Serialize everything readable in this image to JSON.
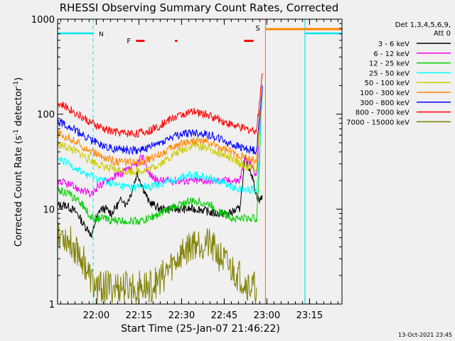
{
  "chart_data": {
    "type": "line",
    "title": "RHESSI Observing Summary Count Rates, Corrected",
    "xlabel": "Start Time (25-Jan-07 21:46:22)",
    "ylabel_main": "Corrected Count Rate (s",
    "ylabel_sup1": "-1",
    "ylabel_mid": " detector",
    "ylabel_sup2": "-1",
    "ylabel_end": ")",
    "y_scale": "log",
    "ylim": [
      1,
      1000
    ],
    "x_range_minutes": [
      0,
      100
    ],
    "x_ticks": [
      {
        "t": 13.6,
        "label": "22:00"
      },
      {
        "t": 28.6,
        "label": "22:15"
      },
      {
        "t": 43.6,
        "label": "22:30"
      },
      {
        "t": 58.6,
        "label": "22:45"
      },
      {
        "t": 73.6,
        "label": "23:00"
      },
      {
        "t": 88.6,
        "label": "23:15"
      }
    ],
    "y_ticks": [
      {
        "v": 1,
        "label": "1"
      },
      {
        "v": 10,
        "label": "10"
      },
      {
        "v": 100,
        "label": "100"
      },
      {
        "v": 1000,
        "label": "1000"
      }
    ],
    "legend_header": [
      "Det 1,3,4,5,6,9,",
      "Att 0"
    ],
    "legend_placement": "right",
    "series": [
      {
        "name": "3 - 6 keV",
        "color": "#000000",
        "values": [
          [
            0,
            11
          ],
          [
            3,
            11
          ],
          [
            5,
            10
          ],
          [
            7,
            9
          ],
          [
            9,
            7
          ],
          [
            11,
            6
          ],
          [
            12,
            5
          ],
          [
            13,
            7
          ],
          [
            15,
            10
          ],
          [
            17,
            10
          ],
          [
            19,
            9
          ],
          [
            21,
            11
          ],
          [
            23,
            13
          ],
          [
            24,
            11
          ],
          [
            26,
            15
          ],
          [
            28,
            24
          ],
          [
            30,
            17
          ],
          [
            32,
            12
          ],
          [
            34,
            11
          ],
          [
            36,
            10
          ],
          [
            40,
            10
          ],
          [
            45,
            10
          ],
          [
            50,
            10
          ],
          [
            55,
            9
          ],
          [
            60,
            9
          ],
          [
            64,
            10
          ],
          [
            66,
            33
          ],
          [
            68,
            25
          ],
          [
            70,
            14
          ],
          [
            71,
            12
          ],
          [
            72,
            14
          ]
        ]
      },
      {
        "name": "6 - 12 keV",
        "color": "#ee00ee",
        "values": [
          [
            0,
            20
          ],
          [
            4,
            18
          ],
          [
            8,
            16
          ],
          [
            12,
            14
          ],
          [
            14,
            17
          ],
          [
            17,
            20
          ],
          [
            20,
            22
          ],
          [
            24,
            25
          ],
          [
            27,
            28
          ],
          [
            30,
            36
          ],
          [
            32,
            24
          ],
          [
            35,
            20
          ],
          [
            40,
            20
          ],
          [
            45,
            20
          ],
          [
            50,
            20
          ],
          [
            55,
            20
          ],
          [
            60,
            20
          ],
          [
            64,
            20
          ],
          [
            66,
            35
          ],
          [
            68,
            30
          ],
          [
            70,
            22
          ],
          [
            72,
            200
          ]
        ]
      },
      {
        "name": "12 - 25 keV",
        "color": "#00cc00",
        "values": [
          [
            0,
            16
          ],
          [
            3,
            15
          ],
          [
            6,
            13
          ],
          [
            9,
            11
          ],
          [
            12,
            8
          ],
          [
            16,
            8
          ],
          [
            20,
            7.5
          ],
          [
            25,
            7.5
          ],
          [
            30,
            7.5
          ],
          [
            34,
            8.5
          ],
          [
            38,
            9.5
          ],
          [
            42,
            11
          ],
          [
            46,
            12
          ],
          [
            50,
            12
          ],
          [
            54,
            11
          ],
          [
            58,
            9
          ],
          [
            62,
            8
          ],
          [
            66,
            8
          ],
          [
            70,
            8
          ],
          [
            71,
            30
          ],
          [
            72,
            200
          ]
        ]
      },
      {
        "name": "25 - 50 keV",
        "color": "#00ffff",
        "values": [
          [
            0,
            33
          ],
          [
            4,
            30
          ],
          [
            8,
            25
          ],
          [
            12,
            22
          ],
          [
            16,
            20
          ],
          [
            20,
            18
          ],
          [
            24,
            17
          ],
          [
            28,
            17
          ],
          [
            32,
            17
          ],
          [
            36,
            18
          ],
          [
            40,
            20
          ],
          [
            44,
            22
          ],
          [
            48,
            23
          ],
          [
            52,
            22
          ],
          [
            56,
            20
          ],
          [
            60,
            18
          ],
          [
            64,
            16
          ],
          [
            68,
            16
          ],
          [
            70,
            16
          ],
          [
            71,
            40
          ],
          [
            72,
            200
          ]
        ]
      },
      {
        "name": "50 - 100 keV",
        "color": "#cccc00",
        "values": [
          [
            0,
            48
          ],
          [
            4,
            44
          ],
          [
            8,
            38
          ],
          [
            12,
            32
          ],
          [
            16,
            28
          ],
          [
            20,
            26
          ],
          [
            24,
            25
          ],
          [
            28,
            25
          ],
          [
            32,
            26
          ],
          [
            36,
            30
          ],
          [
            40,
            36
          ],
          [
            44,
            42
          ],
          [
            48,
            47
          ],
          [
            52,
            45
          ],
          [
            56,
            40
          ],
          [
            60,
            35
          ],
          [
            64,
            30
          ],
          [
            68,
            27
          ],
          [
            70,
            27
          ],
          [
            72,
            200
          ]
        ]
      },
      {
        "name": "100 - 300 keV",
        "color": "#ff8800",
        "values": [
          [
            0,
            62
          ],
          [
            4,
            56
          ],
          [
            8,
            48
          ],
          [
            12,
            40
          ],
          [
            16,
            35
          ],
          [
            20,
            32
          ],
          [
            24,
            31
          ],
          [
            28,
            31
          ],
          [
            32,
            33
          ],
          [
            36,
            38
          ],
          [
            40,
            44
          ],
          [
            44,
            50
          ],
          [
            48,
            53
          ],
          [
            52,
            51
          ],
          [
            56,
            46
          ],
          [
            60,
            41
          ],
          [
            64,
            37
          ],
          [
            68,
            33
          ],
          [
            70,
            33
          ],
          [
            72,
            200
          ]
        ]
      },
      {
        "name": "300 - 800 keV",
        "color": "#0000ff",
        "values": [
          [
            0,
            85
          ],
          [
            4,
            75
          ],
          [
            8,
            62
          ],
          [
            12,
            53
          ],
          [
            16,
            47
          ],
          [
            20,
            43
          ],
          [
            24,
            42
          ],
          [
            28,
            42
          ],
          [
            32,
            44
          ],
          [
            36,
            50
          ],
          [
            40,
            57
          ],
          [
            44,
            62
          ],
          [
            48,
            64
          ],
          [
            52,
            62
          ],
          [
            56,
            57
          ],
          [
            60,
            50
          ],
          [
            64,
            45
          ],
          [
            68,
            42
          ],
          [
            70,
            42
          ],
          [
            72,
            200
          ]
        ]
      },
      {
        "name": "800 - 7000 keV",
        "color": "#ff0000",
        "values": [
          [
            0,
            130
          ],
          [
            4,
            115
          ],
          [
            8,
            95
          ],
          [
            12,
            80
          ],
          [
            16,
            70
          ],
          [
            20,
            65
          ],
          [
            24,
            63
          ],
          [
            28,
            63
          ],
          [
            32,
            66
          ],
          [
            36,
            76
          ],
          [
            40,
            90
          ],
          [
            44,
            100
          ],
          [
            48,
            105
          ],
          [
            52,
            100
          ],
          [
            56,
            90
          ],
          [
            60,
            80
          ],
          [
            64,
            72
          ],
          [
            68,
            68
          ],
          [
            70,
            68
          ],
          [
            72,
            270
          ]
        ]
      },
      {
        "name": "7000 - 15000 keV",
        "color": "#808000",
        "values": [
          [
            0,
            6
          ],
          [
            3,
            5
          ],
          [
            6,
            4
          ],
          [
            9,
            3
          ],
          [
            11,
            2
          ],
          [
            13,
            1.5
          ],
          [
            16,
            1.5
          ],
          [
            20,
            1.5
          ],
          [
            24,
            1.5
          ],
          [
            28,
            1.5
          ],
          [
            32,
            1.5
          ],
          [
            36,
            1.8
          ],
          [
            40,
            2.5
          ],
          [
            44,
            3.5
          ],
          [
            48,
            4.5
          ],
          [
            52,
            4.5
          ],
          [
            56,
            3.5
          ],
          [
            60,
            2.5
          ],
          [
            64,
            2
          ],
          [
            68,
            1.5
          ],
          [
            70,
            1.5
          ]
        ]
      }
    ],
    "markers": {
      "N_label": "N",
      "F_label": "F",
      "S_label": "S",
      "night_intervals": [
        [
          0,
          12.5
        ],
        [
          87,
          100
        ]
      ],
      "flare_segments": [
        [
          27.6,
          30.6
        ],
        [
          41.3,
          42.1
        ],
        [
          65.6,
          68.9
        ]
      ],
      "saa_start": 73.1
    },
    "date_stamp": "13-Oct-2021 23:45"
  }
}
